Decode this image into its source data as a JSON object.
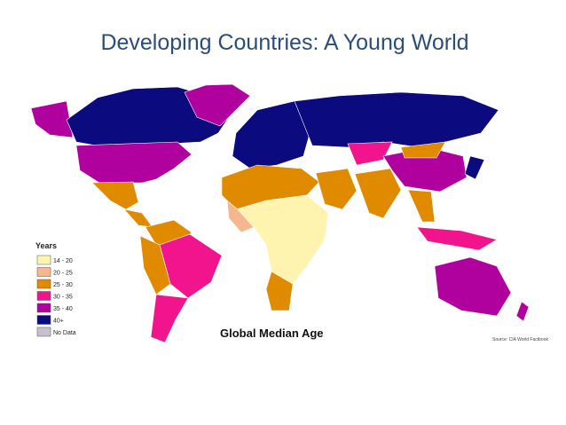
{
  "title": "Developing Countries: A Young World",
  "map": {
    "legend_title": "Years",
    "legend": [
      {
        "label": "14 - 20",
        "color": "#fff3b0"
      },
      {
        "label": "20 - 25",
        "color": "#f5b88e"
      },
      {
        "label": "25 - 30",
        "color": "#e08a00"
      },
      {
        "label": "30 - 35",
        "color": "#f2148c"
      },
      {
        "label": "35 - 40",
        "color": "#b0009e"
      },
      {
        "label": "40+",
        "color": "#0b0a7e"
      },
      {
        "label": "No Data",
        "color": "#c9c0cf"
      }
    ],
    "map_title": "Global Median Age",
    "source": "Source: CIA World Factbook"
  }
}
